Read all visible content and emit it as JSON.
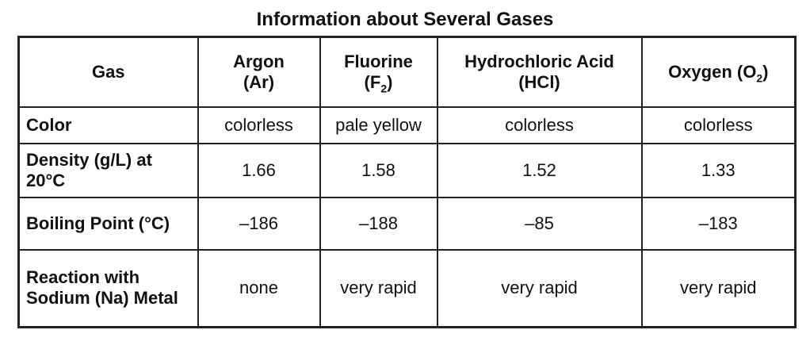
{
  "title": "Information about Several Gases",
  "header": {
    "gas": "Gas",
    "argon_name": "Argon",
    "argon_symbol": "(Ar)",
    "fluorine_name": "Fluorine",
    "fluorine_symbol_prefix": "(F",
    "fluorine_symbol_sub": "2",
    "fluorine_symbol_suffix": ")",
    "hcl_name": "Hydrochloric Acid",
    "hcl_symbol": "(HCl)",
    "oxygen_prefix": "Oxygen (O",
    "oxygen_sub": "2",
    "oxygen_suffix": ")"
  },
  "rows": [
    {
      "label": "Color",
      "values": [
        "colorless",
        "pale yellow",
        "colorless",
        "colorless"
      ]
    },
    {
      "label": "Density (g/L) at 20°C",
      "values": [
        "1.66",
        "1.58",
        "1.52",
        "1.33"
      ]
    },
    {
      "label": "Boiling Point (°C)",
      "values": [
        "–186",
        "–188",
        "–85",
        "–183"
      ]
    },
    {
      "label": "Reaction with Sodium (Na) Metal",
      "values": [
        "none",
        "very rapid",
        "very rapid",
        "very rapid"
      ]
    }
  ]
}
